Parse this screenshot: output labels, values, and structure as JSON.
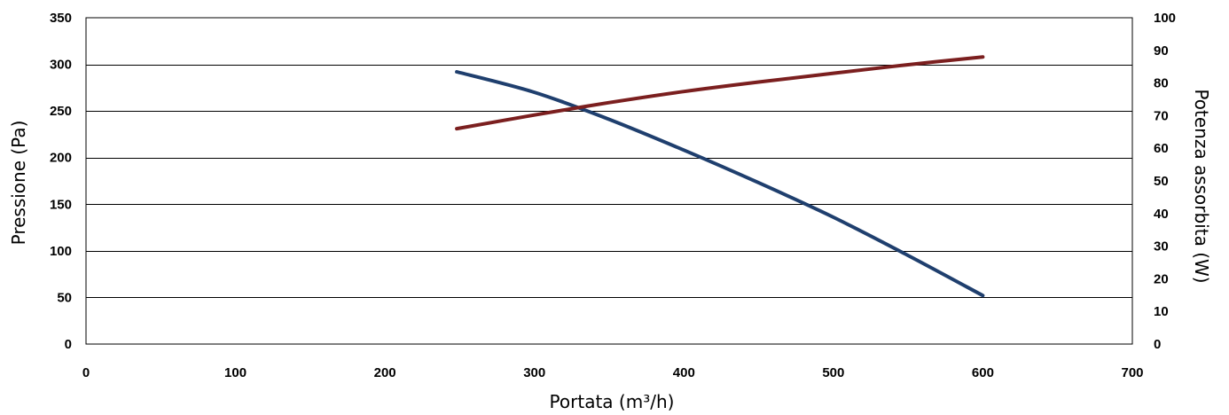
{
  "chart_data": {
    "type": "line",
    "xlabel": "Portata (m³/h)",
    "ylabel_left": "Pressione (Pa)",
    "ylabel_right": "Potenza assorbita (W)",
    "xlim": [
      0,
      700
    ],
    "ylim_left": [
      0,
      350
    ],
    "ylim_right": [
      0,
      100
    ],
    "x_ticks": [
      0,
      100,
      200,
      300,
      400,
      500,
      600,
      700
    ],
    "y_left_ticks": [
      0,
      50,
      100,
      150,
      200,
      250,
      300,
      350
    ],
    "y_right_ticks": [
      0,
      10,
      20,
      30,
      40,
      50,
      60,
      70,
      80,
      90,
      100
    ],
    "grid": "horizontal",
    "series": [
      {
        "axis": "left",
        "color": "#1f3f6e",
        "x": [
          248,
          300,
          350,
          400,
          450,
          500,
          550,
          600
        ],
        "y": [
          292,
          270,
          241,
          208,
          173,
          136,
          95,
          52
        ]
      },
      {
        "axis": "right",
        "color": "#7b1f1f",
        "x": [
          248,
          300,
          350,
          400,
          450,
          500,
          550,
          600
        ],
        "y": [
          66,
          70.2,
          74.0,
          77.4,
          80.3,
          83.0,
          85.6,
          88
        ]
      }
    ]
  }
}
